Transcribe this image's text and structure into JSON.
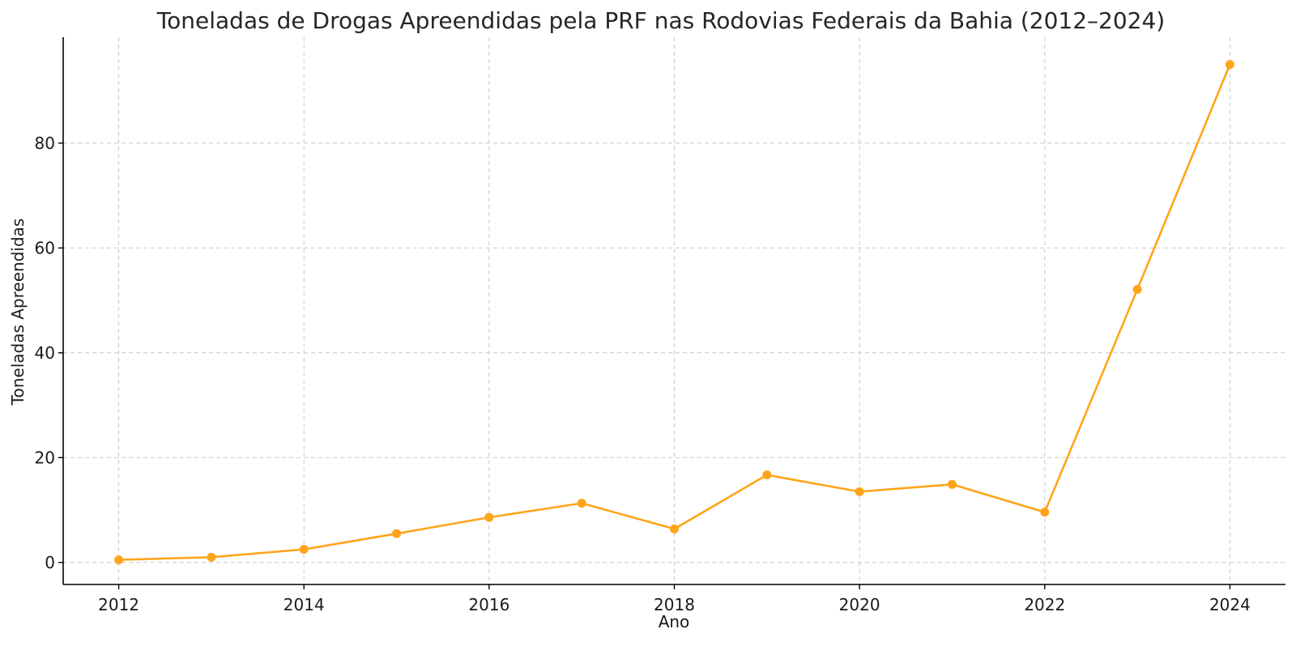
{
  "chart_data": {
    "type": "line",
    "title": "Toneladas de Drogas Apreendidas pela PRF nas Rodovias Federais da Bahia (2012–2024)",
    "xlabel": "Ano",
    "ylabel": "Toneladas Apreendidas",
    "x": [
      2012,
      2013,
      2014,
      2015,
      2016,
      2017,
      2018,
      2019,
      2020,
      2021,
      2022,
      2023,
      2024
    ],
    "series": [
      {
        "values": [
          0.5,
          1.0,
          2.5,
          5.5,
          8.6,
          11.3,
          6.4,
          16.7,
          13.5,
          14.9,
          9.6,
          52.1,
          95.0
        ],
        "color": "#FFA41B"
      }
    ],
    "x_ticks": [
      "2012",
      "2014",
      "2016",
      "2018",
      "2020",
      "2022",
      "2024"
    ],
    "y_ticks": [
      "0",
      "20",
      "40",
      "60",
      "80"
    ],
    "xlim": [
      2011.4,
      2024.6
    ],
    "ylim": [
      -4.2,
      100.2
    ],
    "grid": true,
    "marker": "circle"
  }
}
